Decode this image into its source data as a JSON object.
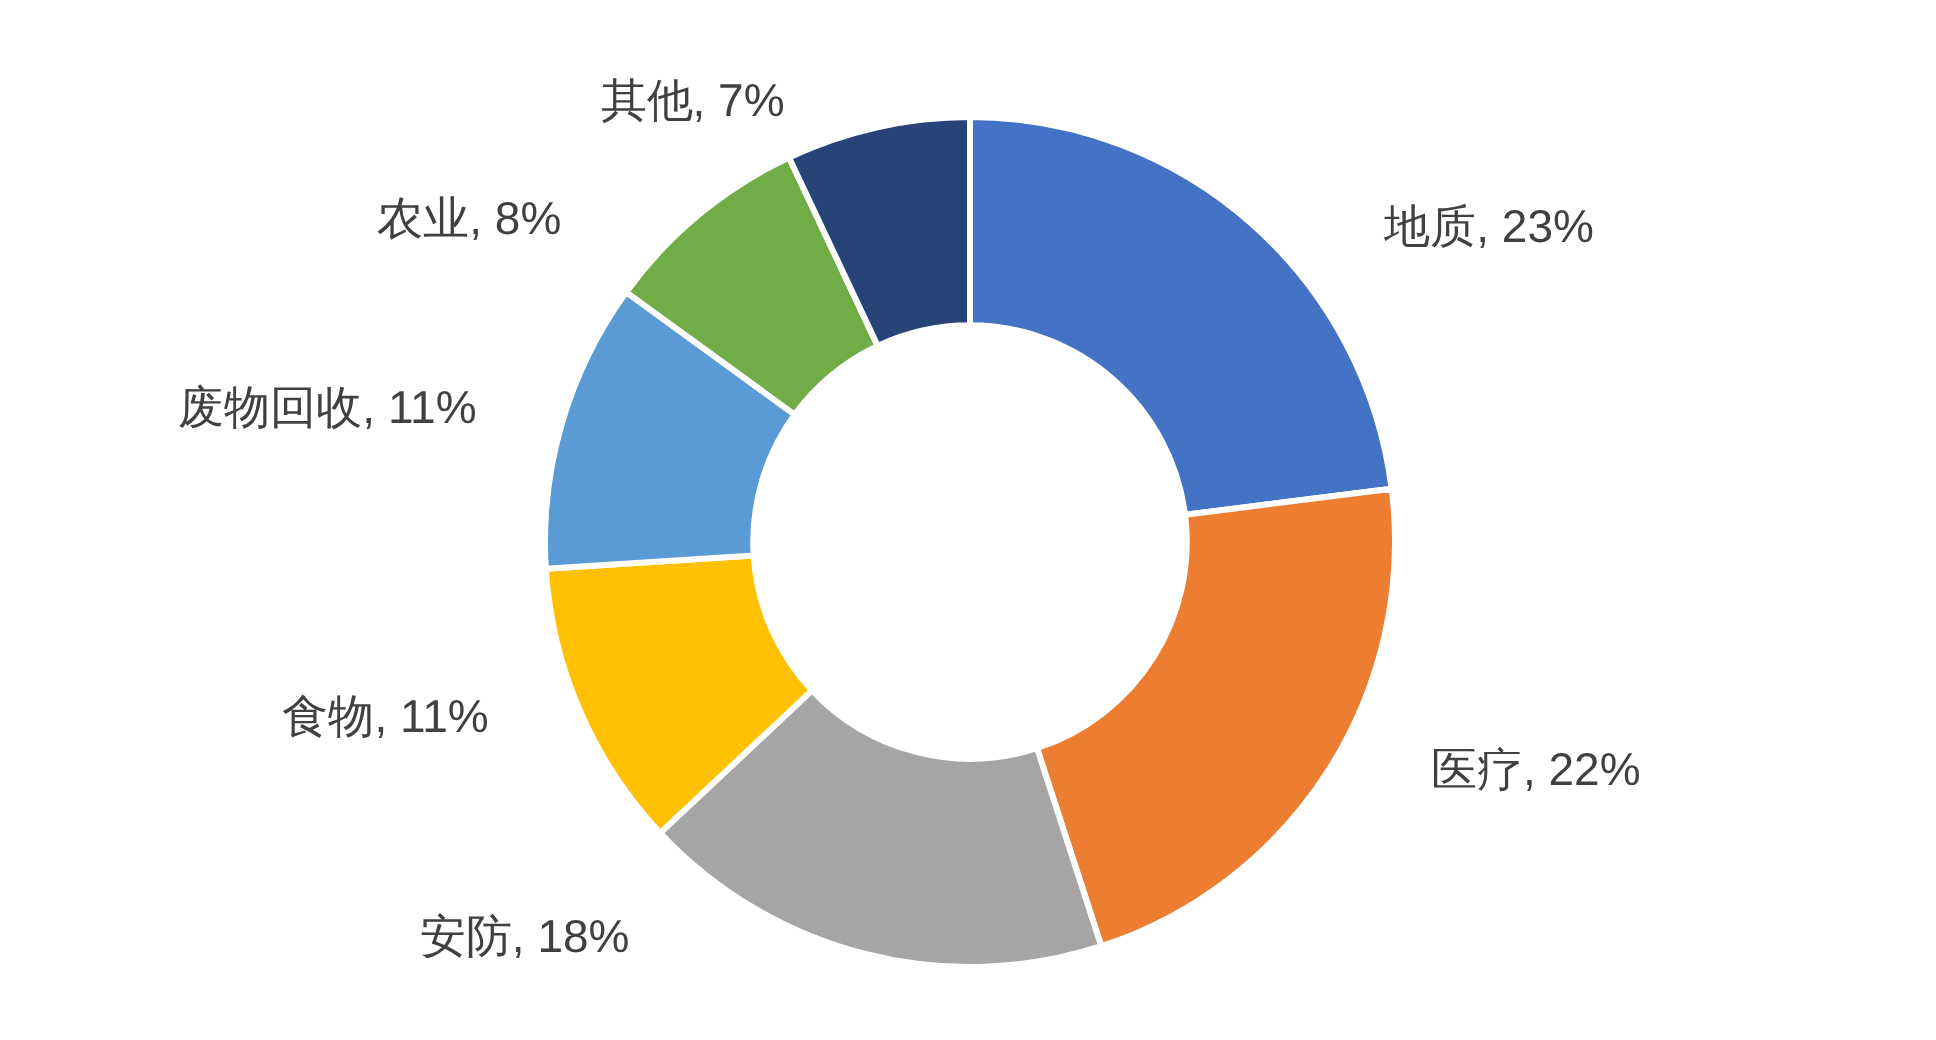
{
  "chart_data": {
    "type": "donut",
    "categories": [
      "地质",
      "医疗",
      "安防",
      "食物",
      "废物回收",
      "农业",
      "其他"
    ],
    "values": [
      23,
      22,
      18,
      11,
      11,
      8,
      7
    ],
    "value_labels": [
      "23%",
      "22%",
      "18%",
      "11%",
      "11%",
      "8%",
      "7%"
    ],
    "colors": [
      "#4472c4",
      "#ed7d31",
      "#a5a5a5",
      "#ffc000",
      "#5b9bd5",
      "#70ad47",
      "#264478"
    ],
    "legend": false
  }
}
